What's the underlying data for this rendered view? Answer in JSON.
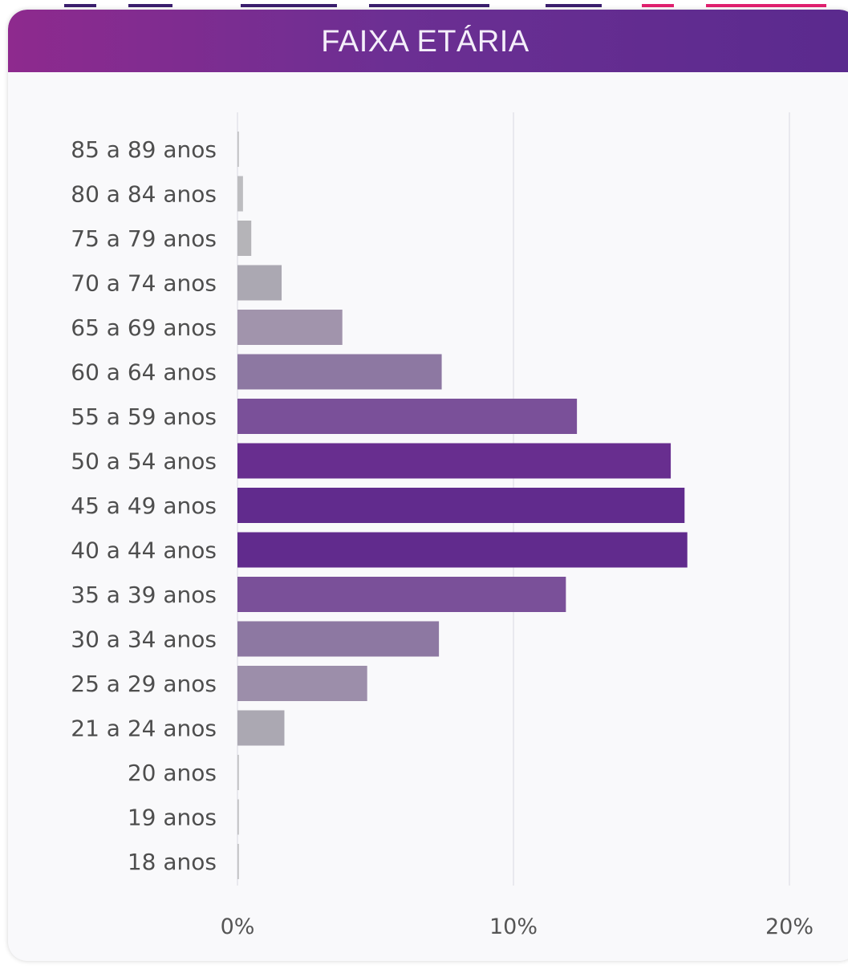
{
  "header": {
    "title": "FAIXA ETÁRIA"
  },
  "colors": {
    "header_start": "#8e2a8e",
    "header_end": "#5a2a8e",
    "card_background": "#f9f9fb",
    "gridline": "#e4e4ea"
  },
  "chart_data": {
    "type": "bar",
    "orientation": "horizontal",
    "title": "FAIXA ETÁRIA",
    "categories": [
      "85 a 89 anos",
      "80 a 84 anos",
      "75 a 79 anos",
      "70 a 74 anos",
      "65 a 69 anos",
      "60 a 64 anos",
      "55 a 59 anos",
      "50 a 54 anos",
      "45 a 49 anos",
      "40 a 44 anos",
      "35 a 39 anos",
      "30 a 34 anos",
      "25 a 29 anos",
      "21 a 24 anos",
      "20 anos",
      "19 anos",
      "18 anos"
    ],
    "values": [
      0.05,
      0.2,
      0.5,
      1.6,
      3.8,
      7.4,
      12.3,
      15.7,
      16.2,
      16.3,
      11.9,
      7.3,
      4.7,
      1.7,
      0.05,
      0.05,
      0.05
    ],
    "bar_colors": [
      "#c0c0c2",
      "#bdbdc0",
      "#b5b4b8",
      "#aba8b2",
      "#a194ac",
      "#8d78a2",
      "#7a5099",
      "#682e8f",
      "#612b8d",
      "#612b8d",
      "#7a5099",
      "#8d78a2",
      "#9c8eaa",
      "#aba8b2",
      "#c0c0c2",
      "#c0c0c2",
      "#c0c0c2"
    ],
    "xlim": [
      0,
      20
    ],
    "x_ticks": [
      "0%",
      "10%",
      "20%"
    ],
    "x_tick_values": [
      0,
      10,
      20
    ],
    "xlabel": "",
    "ylabel": "",
    "grid": true,
    "legend": false
  }
}
